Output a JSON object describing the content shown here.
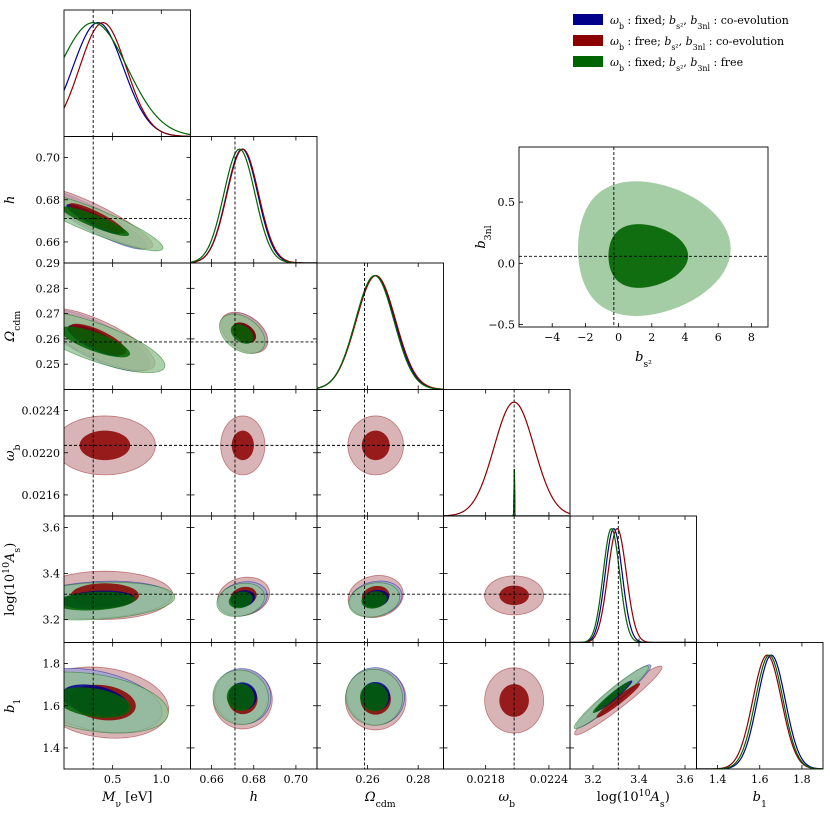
{
  "colors": {
    "blue": "#00008b",
    "red": "#8b0000",
    "green": "#006400",
    "blue_fill_outer": "#9aa0d8",
    "red_fill_outer": "#cc9b9f",
    "green_fill_outer": "#8fc18f"
  },
  "legend": [
    {
      "color": "#00008b",
      "parts": [
        {
          "t": "ω",
          "i": true
        },
        {
          "t": "b",
          "sub": true
        },
        {
          "t": " : fixed;   "
        },
        {
          "t": "b",
          "i": true
        },
        {
          "t": "s²",
          "sub": true
        },
        {
          "t": ", "
        },
        {
          "t": "b",
          "i": true
        },
        {
          "t": "3nl",
          "sub": true
        },
        {
          "t": " : co-evolution"
        }
      ]
    },
    {
      "color": "#8b0000",
      "parts": [
        {
          "t": "ω",
          "i": true
        },
        {
          "t": "b",
          "sub": true
        },
        {
          "t": " : free;   "
        },
        {
          "t": "b",
          "i": true
        },
        {
          "t": "s²",
          "sub": true
        },
        {
          "t": ", "
        },
        {
          "t": "b",
          "i": true
        },
        {
          "t": "3nl",
          "sub": true
        },
        {
          "t": " : co-evolution"
        }
      ]
    },
    {
      "color": "#006400",
      "parts": [
        {
          "t": "ω",
          "i": true
        },
        {
          "t": "b",
          "sub": true
        },
        {
          "t": " : fixed;   "
        },
        {
          "t": "b",
          "i": true
        },
        {
          "t": "s²",
          "sub": true
        },
        {
          "t": ", "
        },
        {
          "t": "b",
          "i": true
        },
        {
          "t": "3nl",
          "sub": true
        },
        {
          "t": " : free"
        }
      ]
    }
  ],
  "chart_data": {
    "type": "corner",
    "series": [
      {
        "name": "ω_b : fixed;  b_s², b_3nl : co-evolution",
        "color": "#00008b"
      },
      {
        "name": "ω_b : free;  b_s², b_3nl : co-evolution",
        "color": "#8b0000"
      },
      {
        "name": "ω_b : fixed;  b_s², b_3nl : free",
        "color": "#006400"
      }
    ],
    "parameters": [
      {
        "key": "mnu",
        "label": [
          {
            "t": "M",
            "i": true
          },
          {
            "t": "ν",
            "sub": true
          },
          {
            "t": " [eV]"
          }
        ],
        "range": [
          0.0,
          1.3
        ],
        "ticks": [
          0.5,
          1.0
        ],
        "tick_labels": [
          "0.5",
          "1.0"
        ],
        "truth": 0.3
      },
      {
        "key": "h",
        "label": [
          {
            "t": "h",
            "i": true
          }
        ],
        "range": [
          0.65,
          0.71
        ],
        "ticks": [
          0.66,
          0.68,
          0.7
        ],
        "tick_labels": [
          "0.66",
          "0.68",
          "0.70"
        ],
        "truth": 0.6711
      },
      {
        "key": "ocdm",
        "label": [
          {
            "t": "Ω",
            "i": true
          },
          {
            "t": "cdm",
            "sub": true
          }
        ],
        "range": [
          0.24,
          0.29
        ],
        "ticks": [
          0.25,
          0.26,
          0.27,
          0.28,
          0.29
        ],
        "tick_labels": [
          "0.25",
          "0.26",
          "0.27",
          "0.28",
          "0.29"
        ],
        "x_ticks": [
          0.26,
          0.28
        ],
        "x_tick_labels": [
          "0.26",
          "0.28"
        ],
        "truth": 0.2588
      },
      {
        "key": "omb",
        "label": [
          {
            "t": "ω",
            "i": true
          },
          {
            "t": "b",
            "sub": true
          }
        ],
        "range": [
          0.0214,
          0.0226
        ],
        "ticks": [
          0.0216,
          0.022,
          0.0224
        ],
        "tick_labels": [
          "0.0216",
          "0.0220",
          "0.0224"
        ],
        "x_ticks": [
          0.0218,
          0.0224
        ],
        "x_tick_labels": [
          "0.0218",
          "0.0224"
        ],
        "truth": 0.02207
      },
      {
        "key": "las",
        "label": [
          {
            "t": "log(10"
          },
          {
            "t": "10",
            "sup": true
          },
          {
            "t": "A",
            "i": true
          },
          {
            "t": "s",
            "sub": true
          },
          {
            "t": ")"
          }
        ],
        "range": [
          3.1,
          3.65
        ],
        "ticks": [
          3.2,
          3.4,
          3.6
        ],
        "tick_labels": [
          "3.2",
          "3.4",
          "3.6"
        ],
        "truth": 3.31
      },
      {
        "key": "b1",
        "label": [
          {
            "t": "b",
            "i": true
          },
          {
            "t": "1",
            "sub": true
          }
        ],
        "range": [
          1.3,
          1.9
        ],
        "ticks": [
          1.4,
          1.6,
          1.8
        ],
        "tick_labels": [
          "1.4",
          "1.6",
          "1.8"
        ],
        "truth": null
      }
    ],
    "marginals": {
      "mnu": [
        {
          "series": 0,
          "mean": 0.35,
          "sigma": 0.26
        },
        {
          "series": 1,
          "mean": 0.4,
          "sigma": 0.24
        },
        {
          "series": 2,
          "mean": 0.3,
          "sigma": 0.35
        }
      ],
      "h": [
        {
          "series": 0,
          "mean": 0.6745,
          "sigma": 0.0074
        },
        {
          "series": 1,
          "mean": 0.6748,
          "sigma": 0.0075
        },
        {
          "series": 2,
          "mean": 0.6732,
          "sigma": 0.0074
        }
      ],
      "ocdm": [
        {
          "series": 0,
          "mean": 0.2631,
          "sigma": 0.0077
        },
        {
          "series": 1,
          "mean": 0.2633,
          "sigma": 0.0078
        },
        {
          "series": 2,
          "mean": 0.2628,
          "sigma": 0.0076
        }
      ],
      "omb": [
        {
          "series": 1,
          "mean": 0.02207,
          "sigma": 0.00019
        },
        {
          "series": 0,
          "mean": 0.02207,
          "sigma": 1.5e-06
        },
        {
          "series": 2,
          "mean": 0.02207,
          "sigma": 1.5e-06
        }
      ],
      "las": [
        {
          "series": 0,
          "mean": 3.29,
          "sigma": 0.037
        },
        {
          "series": 1,
          "mean": 3.305,
          "sigma": 0.04
        },
        {
          "series": 2,
          "mean": 3.28,
          "sigma": 0.036
        }
      ],
      "b1": [
        {
          "series": 0,
          "mean": 1.655,
          "sigma": 0.066
        },
        {
          "series": 1,
          "mean": 1.635,
          "sigma": 0.068
        },
        {
          "series": 2,
          "mean": 1.645,
          "sigma": 0.066
        }
      ]
    },
    "contours_2d": [
      {
        "x": "mnu",
        "y": "h",
        "ellipses": [
          {
            "series": 0,
            "cx": 0.3,
            "cy": 0.6708,
            "rx": 0.62,
            "ry": 0.0055,
            "rot": -28
          },
          {
            "series": 1,
            "cx": 0.34,
            "cy": 0.6712,
            "rx": 0.64,
            "ry": 0.0058,
            "rot": -27
          },
          {
            "series": 2,
            "cx": 0.32,
            "cy": 0.6698,
            "rx": 0.75,
            "ry": 0.0058,
            "rot": -22
          }
        ]
      },
      {
        "x": "mnu",
        "y": "ocdm",
        "ellipses": [
          {
            "series": 0,
            "cx": 0.32,
            "cy": 0.2595,
            "rx": 0.62,
            "ry": 0.0072,
            "rot": -26
          },
          {
            "series": 1,
            "cx": 0.35,
            "cy": 0.2598,
            "rx": 0.64,
            "ry": 0.0074,
            "rot": -25
          },
          {
            "series": 2,
            "cx": 0.32,
            "cy": 0.2588,
            "rx": 0.76,
            "ry": 0.0074,
            "rot": -20
          }
        ]
      },
      {
        "x": "mnu",
        "y": "omb",
        "ellipses": [
          {
            "series": 1,
            "cx": 0.42,
            "cy": 0.02207,
            "rx": 0.52,
            "ry": 0.00028,
            "rot": 0
          }
        ]
      },
      {
        "x": "mnu",
        "y": "las",
        "ellipses": [
          {
            "series": 1,
            "cx": 0.42,
            "cy": 3.305,
            "rx": 0.7,
            "ry": 0.105,
            "rot": 0
          },
          {
            "series": 0,
            "cx": 0.35,
            "cy": 3.285,
            "rx": 0.75,
            "ry": 0.08,
            "rot": 3
          },
          {
            "series": 2,
            "cx": 0.32,
            "cy": 3.28,
            "rx": 0.82,
            "ry": 0.08,
            "rot": 3
          }
        ]
      },
      {
        "x": "mnu",
        "y": "b1",
        "ellipses": [
          {
            "series": 1,
            "cx": 0.4,
            "cy": 1.615,
            "rx": 0.68,
            "ry": 0.165,
            "rot": -8
          },
          {
            "series": 0,
            "cx": 0.32,
            "cy": 1.625,
            "rx": 0.7,
            "ry": 0.14,
            "rot": -12
          },
          {
            "series": 2,
            "cx": 0.3,
            "cy": 1.615,
            "rx": 0.78,
            "ry": 0.135,
            "rot": -9
          }
        ]
      },
      {
        "x": "h",
        "y": "ocdm",
        "ellipses": [
          {
            "series": 0,
            "cx": 0.6755,
            "cy": 0.2625,
            "rx": 0.012,
            "ry": 0.0065,
            "rot": -35
          },
          {
            "series": 1,
            "cx": 0.6755,
            "cy": 0.2625,
            "rx": 0.0125,
            "ry": 0.0066,
            "rot": -35
          },
          {
            "series": 2,
            "cx": 0.6745,
            "cy": 0.262,
            "rx": 0.012,
            "ry": 0.0065,
            "rot": -35
          }
        ]
      },
      {
        "x": "h",
        "y": "omb",
        "ellipses": [
          {
            "series": 1,
            "cx": 0.6748,
            "cy": 0.02207,
            "rx": 0.0105,
            "ry": 0.00028,
            "rot": 0
          }
        ]
      },
      {
        "x": "h",
        "y": "las",
        "ellipses": [
          {
            "series": 1,
            "cx": 0.6752,
            "cy": 3.3,
            "rx": 0.0125,
            "ry": 0.082,
            "rot": 14
          },
          {
            "series": 0,
            "cx": 0.6748,
            "cy": 3.29,
            "rx": 0.0118,
            "ry": 0.072,
            "rot": 14
          },
          {
            "series": 2,
            "cx": 0.6738,
            "cy": 3.285,
            "rx": 0.0115,
            "ry": 0.07,
            "rot": 14
          }
        ]
      },
      {
        "x": "h",
        "y": "b1",
        "ellipses": [
          {
            "series": 1,
            "cx": 0.6748,
            "cy": 1.63,
            "rx": 0.014,
            "ry": 0.14,
            "rot": -30
          },
          {
            "series": 0,
            "cx": 0.6748,
            "cy": 1.645,
            "rx": 0.0135,
            "ry": 0.13,
            "rot": -32
          },
          {
            "series": 2,
            "cx": 0.6738,
            "cy": 1.64,
            "rx": 0.0133,
            "ry": 0.128,
            "rot": -32
          }
        ]
      },
      {
        "x": "ocdm",
        "y": "omb",
        "ellipses": [
          {
            "series": 1,
            "cx": 0.2632,
            "cy": 0.02207,
            "rx": 0.011,
            "ry": 0.00028,
            "rot": 0
          }
        ]
      },
      {
        "x": "ocdm",
        "y": "las",
        "ellipses": [
          {
            "series": 1,
            "cx": 0.2632,
            "cy": 3.3,
            "rx": 0.011,
            "ry": 0.09,
            "rot": 12
          },
          {
            "series": 0,
            "cx": 0.2632,
            "cy": 3.29,
            "rx": 0.0105,
            "ry": 0.075,
            "rot": 12
          },
          {
            "series": 2,
            "cx": 0.2626,
            "cy": 3.285,
            "rx": 0.0102,
            "ry": 0.073,
            "rot": 12
          }
        ]
      },
      {
        "x": "ocdm",
        "y": "b1",
        "ellipses": [
          {
            "series": 1,
            "cx": 0.2632,
            "cy": 1.63,
            "rx": 0.012,
            "ry": 0.145,
            "rot": -30
          },
          {
            "series": 0,
            "cx": 0.2632,
            "cy": 1.645,
            "rx": 0.0115,
            "ry": 0.135,
            "rot": -32
          },
          {
            "series": 2,
            "cx": 0.2626,
            "cy": 1.64,
            "rx": 0.0113,
            "ry": 0.132,
            "rot": -32
          }
        ]
      },
      {
        "x": "omb",
        "y": "las",
        "ellipses": [
          {
            "series": 1,
            "cx": 0.02207,
            "cy": 3.305,
            "rx": 0.00028,
            "ry": 0.085,
            "rot": 0
          }
        ]
      },
      {
        "x": "omb",
        "y": "b1",
        "ellipses": [
          {
            "series": 1,
            "cx": 0.02207,
            "cy": 1.625,
            "rx": 0.00028,
            "ry": 0.155,
            "rot": 0
          }
        ]
      },
      {
        "x": "las",
        "y": "b1",
        "ellipses": [
          {
            "series": 1,
            "cx": 3.31,
            "cy": 1.625,
            "rx": 0.24,
            "ry": 0.035,
            "rot": 38
          },
          {
            "series": 0,
            "cx": 3.29,
            "cy": 1.645,
            "rx": 0.21,
            "ry": 0.032,
            "rot": 40
          },
          {
            "series": 2,
            "cx": 3.28,
            "cy": 1.64,
            "rx": 0.21,
            "ry": 0.032,
            "rot": 40
          }
        ]
      }
    ],
    "inset": {
      "x_label": [
        {
          "t": "b",
          "i": true
        },
        {
          "t": "s²",
          "sub": true
        }
      ],
      "y_label": [
        {
          "t": "b",
          "i": true
        },
        {
          "t": "3nl",
          "sub": true
        }
      ],
      "x_range": [
        -6,
        9
      ],
      "y_range": [
        -0.52,
        0.95
      ],
      "x_ticks": [
        -4,
        -2,
        0,
        2,
        4,
        6,
        8
      ],
      "x_tick_labels": [
        "−4",
        "−2",
        "0",
        "2",
        "4",
        "6",
        "8"
      ],
      "y_ticks": [
        -0.5,
        0.0,
        0.5
      ],
      "y_tick_labels": [
        "−0.5",
        "0.0",
        "0.5"
      ],
      "truth": [
        -0.286,
        0.057
      ],
      "contour": {
        "series": 2,
        "outer": {
          "cx": 1.6,
          "cy": 0.12,
          "rx": 4.6,
          "ry": 0.55,
          "rot": 0
        },
        "inner": {
          "cx": 1.5,
          "cy": 0.06,
          "rx": 2.4,
          "ry": 0.26,
          "rot": 0
        }
      }
    }
  }
}
